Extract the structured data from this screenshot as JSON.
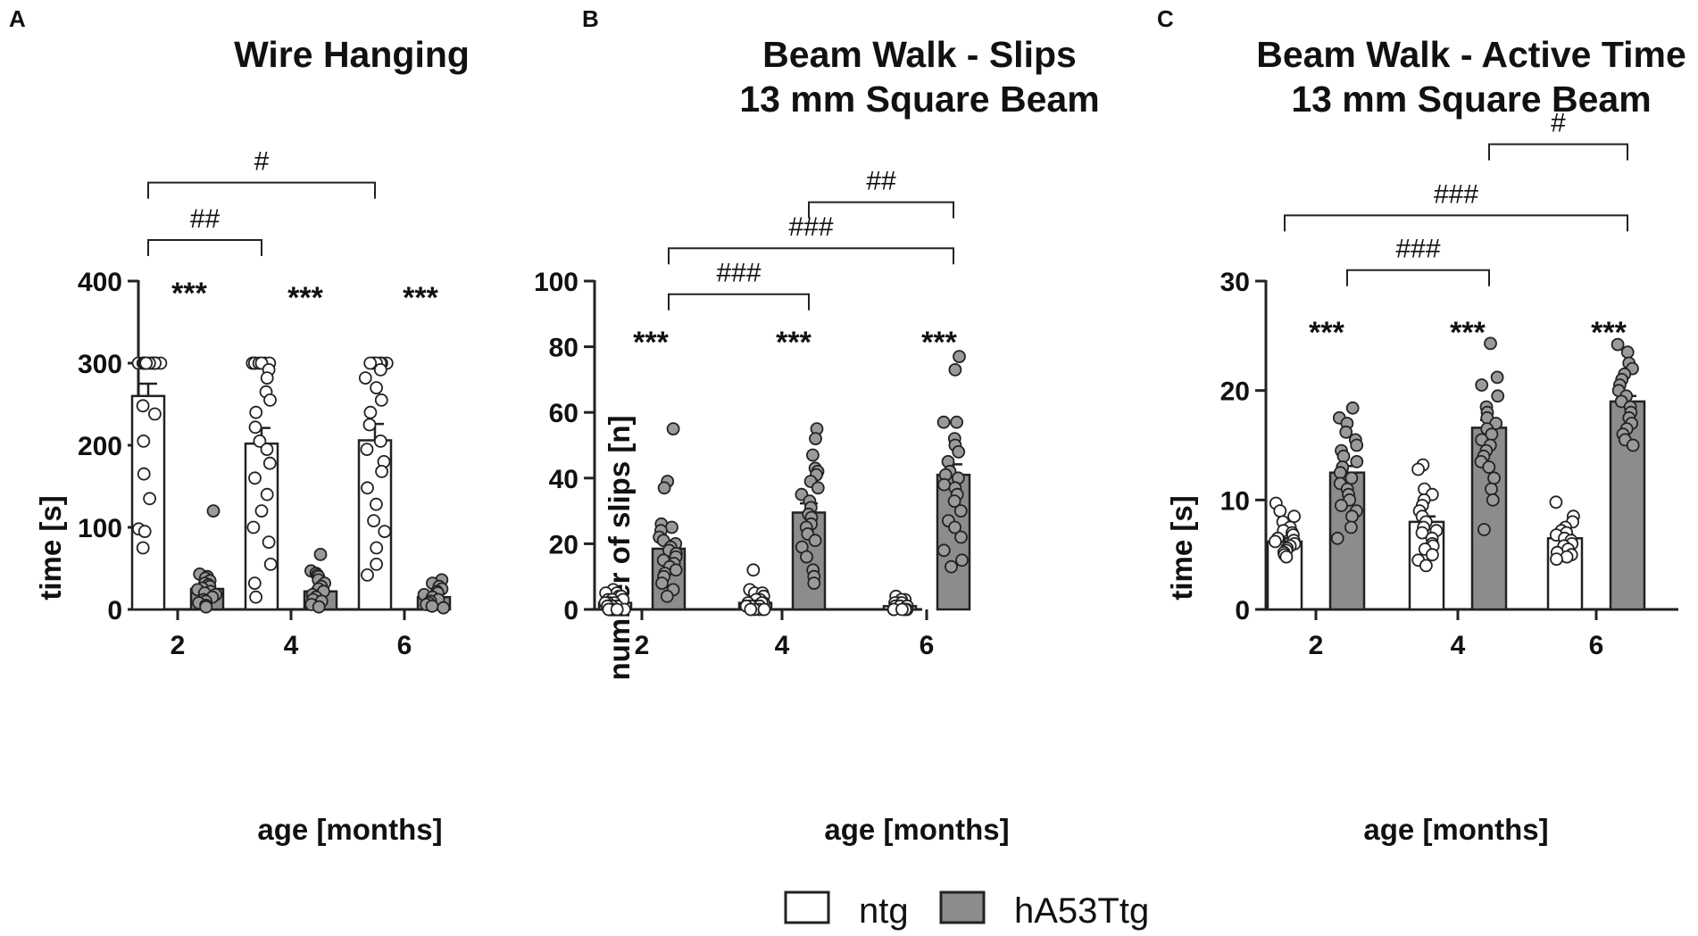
{
  "legend": {
    "items": [
      {
        "label": "ntg",
        "color": "#ffffff"
      },
      {
        "label": "hA53Ttg",
        "color": "#8c8c8c"
      }
    ]
  },
  "chart_data": [
    {
      "type": "bar",
      "panel": "A",
      "title": [
        "Wire Hanging"
      ],
      "xlabel": "age [months]",
      "ylabel": "time [s]",
      "ylim": [
        0,
        400
      ],
      "yticks": [
        0,
        100,
        200,
        300,
        400
      ],
      "categories": [
        "2",
        "4",
        "6"
      ],
      "series": [
        {
          "name": "ntg",
          "color": "#ffffff",
          "values": [
            260,
            202,
            206
          ],
          "sem": [
            15,
            19,
            20
          ],
          "points": [
            [
              300,
              300,
              300,
              300,
              300,
              300,
              300,
              300,
              300,
              300,
              300,
              300,
              300,
              300,
              300,
              248,
              238,
              205,
              165,
              135,
              98,
              95,
              75
            ],
            [
              300,
              300,
              300,
              300,
              300,
              300,
              300,
              292,
              282,
              265,
              255,
              240,
              222,
              205,
              195,
              178,
              160,
              140,
              120,
              100,
              82,
              55,
              32,
              15
            ],
            [
              300,
              300,
              300,
              300,
              300,
              300,
              300,
              292,
              282,
              270,
              255,
              240,
              225,
              205,
              195,
              180,
              168,
              148,
              128,
              108,
              95,
              75,
              55,
              42
            ]
          ]
        },
        {
          "name": "hA53Ttg",
          "color": "#8c8c8c",
          "values": [
            25,
            22,
            15
          ],
          "sem": [
            5,
            4,
            2
          ],
          "points": [
            [
              120,
              43,
              40,
              38,
              35,
              32,
              30,
              28,
              26,
              24,
              22,
              20,
              18,
              15,
              12,
              10,
              8,
              5,
              3
            ],
            [
              67,
              47,
              44,
              42,
              40,
              36,
              32,
              28,
              25,
              22,
              18,
              15,
              12,
              10,
              6,
              3
            ],
            [
              36,
              32,
              28,
              25,
              22,
              20,
              18,
              15,
              12,
              10,
              8,
              6,
              4,
              2
            ]
          ]
        }
      ],
      "significance": [
        {
          "label": "***",
          "category": 0
        },
        {
          "label": "***",
          "category": 1
        },
        {
          "label": "***",
          "category": 2
        }
      ],
      "brackets": [
        {
          "label": "##",
          "from_category": 0,
          "from_series": 0,
          "to_category": 1,
          "to_series": 0,
          "value": 450
        },
        {
          "label": "#",
          "from_category": 0,
          "from_series": 0,
          "to_category": 2,
          "to_series": 0,
          "value": 520
        }
      ]
    },
    {
      "type": "bar",
      "panel": "B",
      "title": [
        "Beam Walk - Slips",
        "13 mm Square Beam"
      ],
      "xlabel": "age [months]",
      "ylabel": "number of slips [n]",
      "ylim": [
        0,
        100
      ],
      "yticks": [
        0,
        20,
        40,
        60,
        80,
        100
      ],
      "categories": [
        "2",
        "4",
        "6"
      ],
      "series": [
        {
          "name": "ntg",
          "color": "#ffffff",
          "values": [
            2,
            2,
            1
          ],
          "sem": [
            0.4,
            0.5,
            0.2
          ],
          "points": [
            [
              6,
              5,
              5,
              4,
              4,
              3,
              3,
              3,
              2,
              2,
              2,
              2,
              1,
              1,
              1,
              1,
              0,
              0,
              0,
              0,
              0
            ],
            [
              12,
              6,
              5,
              5,
              4,
              3,
              3,
              2,
              2,
              2,
              1,
              1,
              1,
              1,
              0,
              0,
              0,
              0,
              0,
              0
            ],
            [
              4,
              3,
              3,
              2,
              2,
              2,
              1,
              1,
              1,
              1,
              0,
              0,
              0,
              0,
              0,
              0
            ]
          ]
        },
        {
          "name": "hA53Ttg",
          "color": "#8c8c8c",
          "values": [
            18.5,
            29.5,
            41
          ],
          "sem": [
            2.5,
            2.8,
            3.2
          ],
          "points": [
            [
              55,
              39,
              37,
              26,
              25,
              24,
              22,
              21,
              20,
              19,
              18,
              17,
              16,
              15,
              14,
              13,
              12,
              11,
              10,
              8,
              6,
              4
            ],
            [
              55,
              52,
              47,
              43,
              42,
              41,
              39,
              37,
              35,
              33,
              31,
              29,
              28,
              26,
              25,
              23,
              21,
              19,
              16,
              12,
              10,
              8
            ],
            [
              77,
              73,
              57,
              57,
              52,
              50,
              48,
              45,
              42,
              41,
              40,
              38,
              37,
              35,
              33,
              30,
              27,
              25,
              22,
              18,
              15,
              13
            ]
          ]
        }
      ],
      "significance": [
        {
          "label": "***",
          "category": 0
        },
        {
          "label": "***",
          "category": 1
        },
        {
          "label": "***",
          "category": 2
        }
      ],
      "brackets": [
        {
          "label": "###",
          "from_category": 0,
          "from_series": 1,
          "to_category": 1,
          "to_series": 1,
          "value": 96
        },
        {
          "label": "###",
          "from_category": 0,
          "from_series": 1,
          "to_category": 2,
          "to_series": 1,
          "value": 110
        },
        {
          "label": "##",
          "from_category": 1,
          "from_series": 1,
          "to_category": 2,
          "to_series": 1,
          "value": 124
        }
      ]
    },
    {
      "type": "bar",
      "panel": "C",
      "title": [
        "Beam Walk -  Active Time",
        "13 mm Square Beam"
      ],
      "xlabel": "age [months]",
      "ylabel": "time [s]",
      "ylim": [
        0,
        30
      ],
      "yticks": [
        0,
        10,
        20,
        30
      ],
      "categories": [
        "2",
        "4",
        "6"
      ],
      "series": [
        {
          "name": "ntg",
          "color": "#ffffff",
          "values": [
            6.2,
            8,
            6.5
          ],
          "sem": [
            0.3,
            0.5,
            0.3
          ],
          "points": [
            [
              9.7,
              9,
              8.5,
              8,
              7.5,
              7.2,
              7,
              6.8,
              6.5,
              6.3,
              6.2,
              6,
              5.8,
              5.6,
              5.4,
              5.2,
              5,
              4.8
            ],
            [
              13.2,
              12.8,
              11,
              10.5,
              10,
              9.5,
              9,
              8.5,
              8,
              7.5,
              7.2,
              7,
              6.5,
              6,
              5.8,
              5.5,
              5,
              4.5,
              4
            ],
            [
              9.8,
              8.5,
              8,
              7.5,
              7.2,
              7,
              6.8,
              6.5,
              6.3,
              6,
              5.8,
              5.5,
              5.2,
              5,
              4.8,
              4.6
            ]
          ]
        },
        {
          "name": "hA53Ttg",
          "color": "#8c8c8c",
          "values": [
            12.5,
            16.6,
            19
          ],
          "sem": [
            0.6,
            0.7,
            0.5
          ],
          "points": [
            [
              18.4,
              17.5,
              17,
              16.2,
              15.5,
              15,
              14.5,
              14,
              13.5,
              13,
              12.5,
              12,
              11.5,
              11,
              10.5,
              10,
              9.5,
              9,
              8.5,
              7.5,
              6.5
            ],
            [
              24.3,
              21.2,
              20.5,
              19.5,
              18.5,
              18,
              17.5,
              17,
              16.5,
              16,
              15.5,
              15,
              14.5,
              14,
              13.5,
              13,
              12,
              11,
              10,
              7.3
            ],
            [
              24.2,
              23.5,
              22.5,
              22,
              21.5,
              21,
              20.5,
              20,
              19.5,
              19,
              18.5,
              18,
              17.5,
              17,
              16.5,
              16,
              15.5,
              15
            ]
          ]
        }
      ],
      "significance": [
        {
          "label": "***",
          "category": 0
        },
        {
          "label": "***",
          "category": 1
        },
        {
          "label": "***",
          "category": 2
        }
      ],
      "brackets": [
        {
          "label": "###",
          "from_category": 0,
          "from_series": 1,
          "to_category": 1,
          "to_series": 1,
          "value": 31
        },
        {
          "label": "###",
          "from_category": 0,
          "from_series": 0,
          "to_category": 2,
          "to_series": 1,
          "value": 36
        },
        {
          "label": "#",
          "from_category": 1,
          "from_series": 1,
          "to_category": 2,
          "to_series": 1,
          "value": 42.5
        }
      ]
    }
  ]
}
